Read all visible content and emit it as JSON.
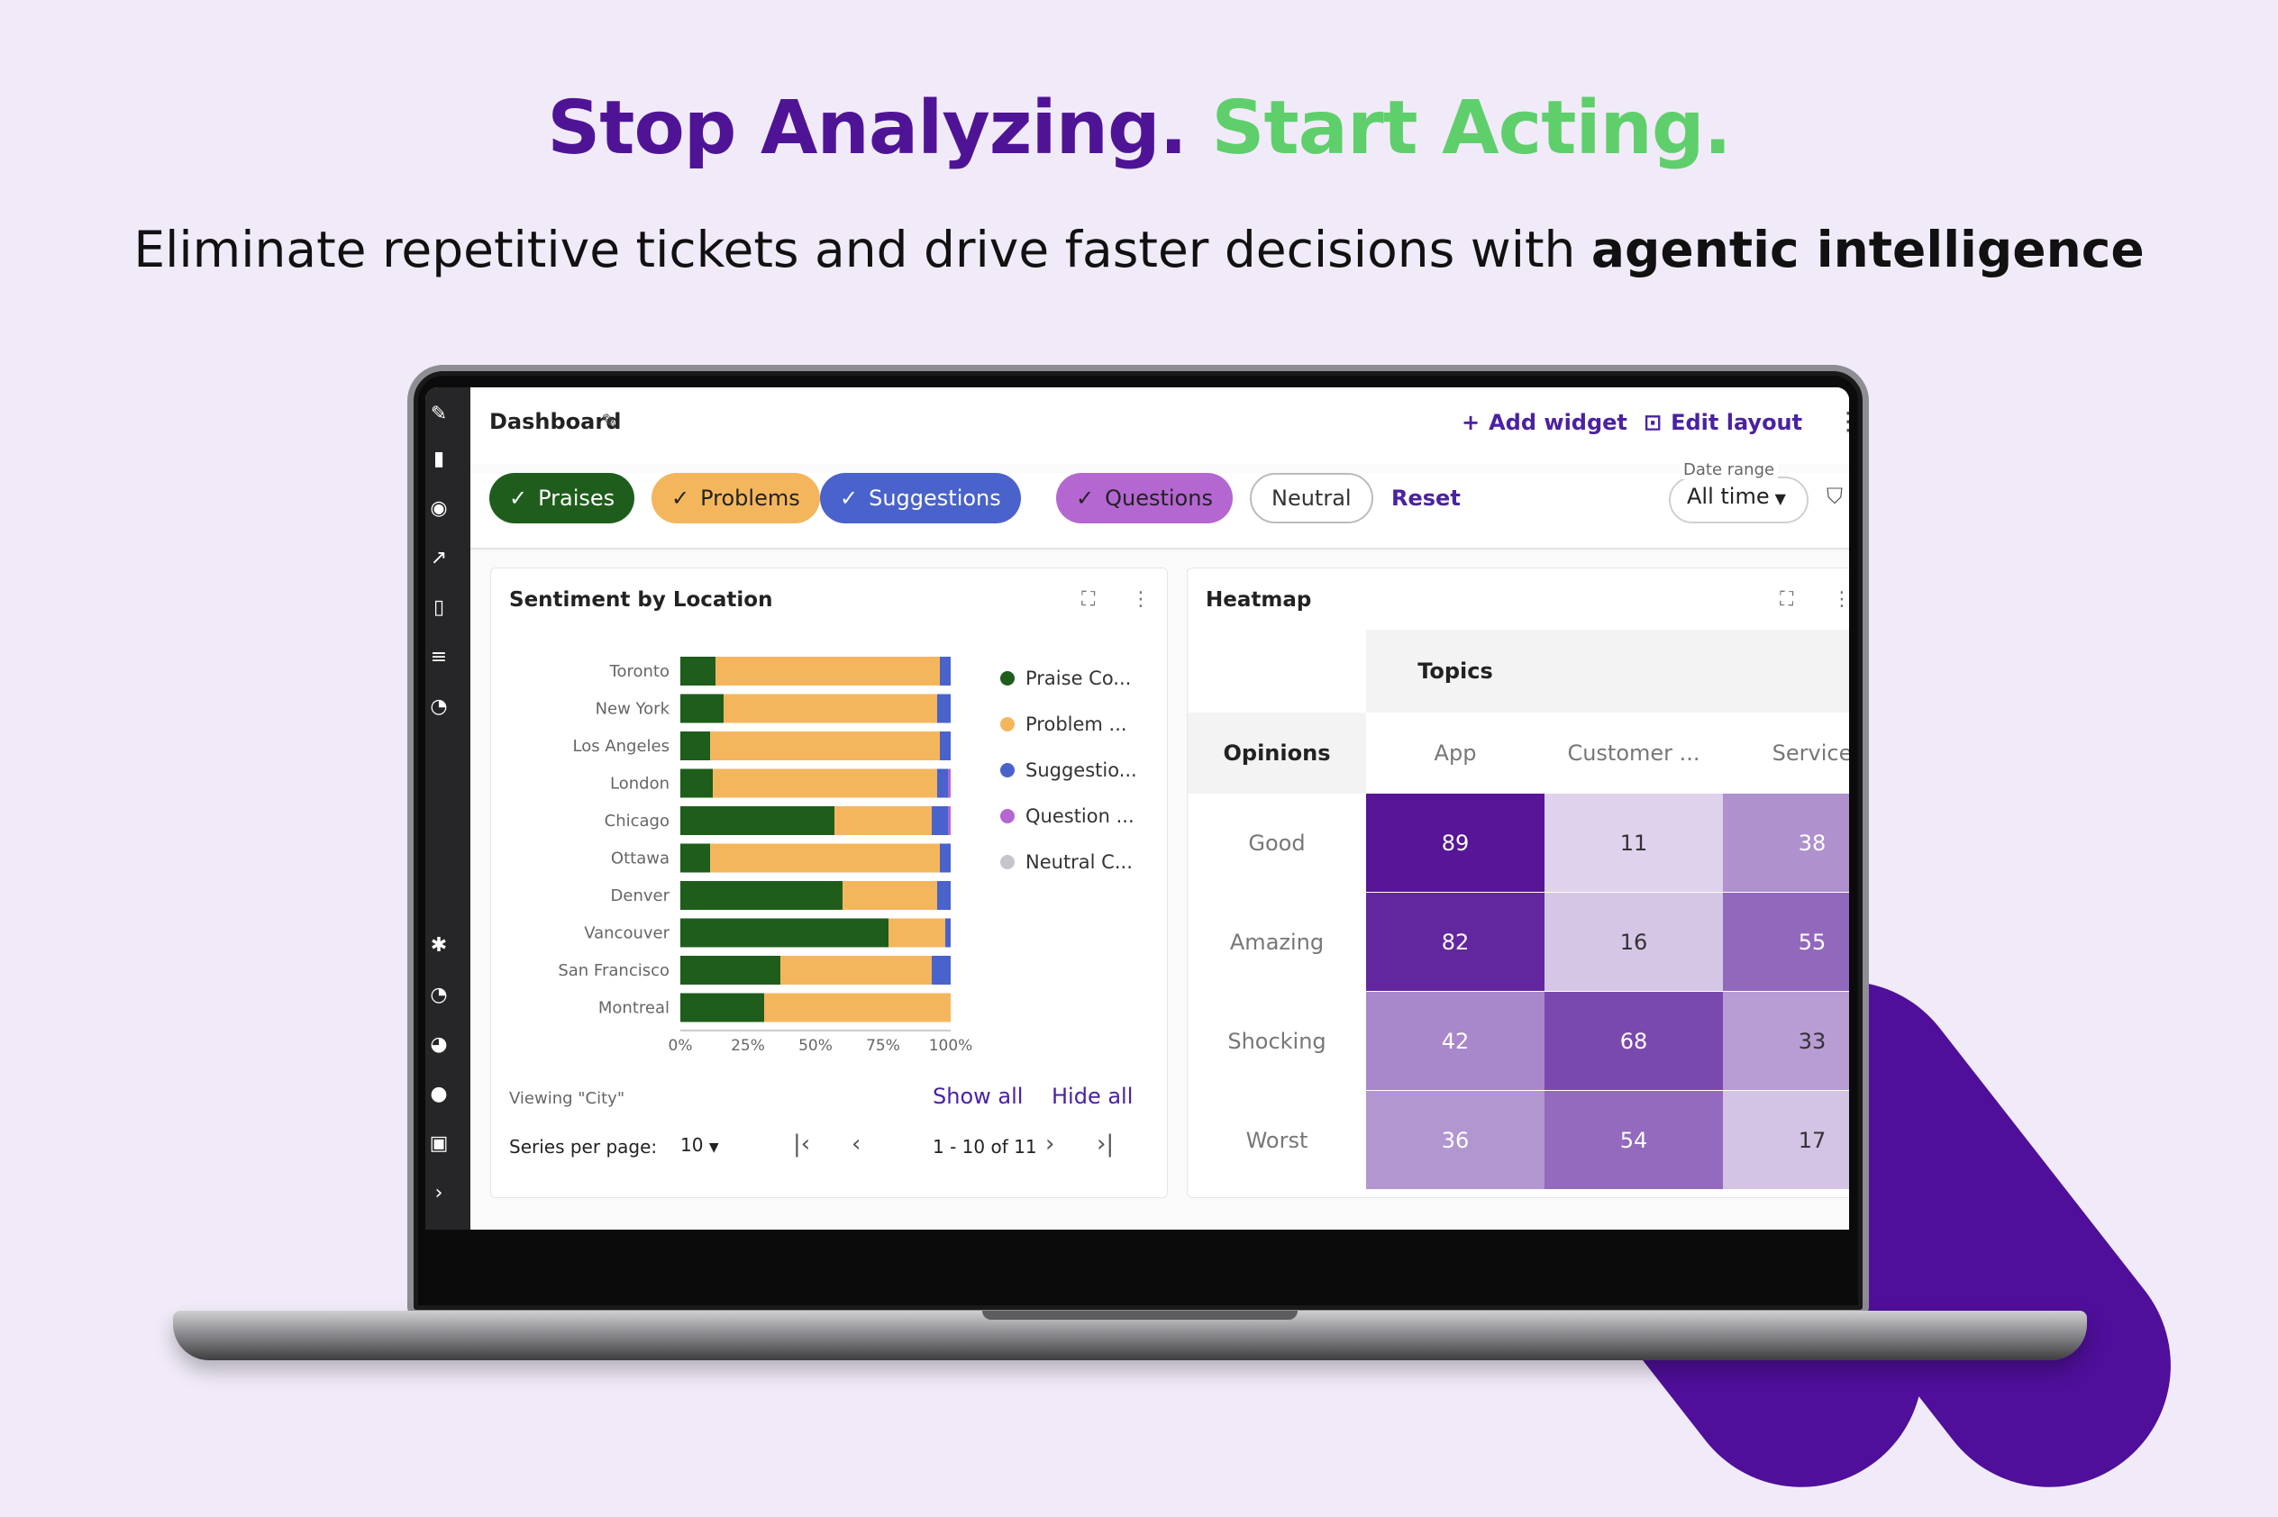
{
  "headline": {
    "part1": "Stop Analyzing.",
    "part2": "Start Acting."
  },
  "subline": {
    "text": "Eliminate repetitive tickets and drive faster decisions with ",
    "bold": "agentic intelligence"
  },
  "header": {
    "title": "Dashboard",
    "add_widget": "Add widget",
    "edit_layout": "Edit layout"
  },
  "filters": {
    "chips": [
      "Praises",
      "Problems",
      "Suggestions",
      "Questions",
      "Neutral"
    ],
    "reset": "Reset",
    "date_range_label": "Date range",
    "date_range_value": "All time"
  },
  "colors": {
    "praise": "#1f5d1c",
    "problem": "#f4b65d",
    "suggestion": "#4a62cb",
    "question": "#b466d1",
    "neutral": "#c5c5cc",
    "accent": "#4a22a1",
    "headline_purple": "#4f1496",
    "headline_green": "#5fcf6b"
  },
  "sentiment_card": {
    "title": "Sentiment by Location",
    "viewing": "Viewing \"City\"",
    "show_all": "Show all",
    "hide_all": "Hide all",
    "per_page_label": "Series per page:",
    "per_page_value": "10",
    "page_range": "1 - 10 of 11"
  },
  "chart_data": {
    "type": "bar",
    "orientation": "horizontal",
    "stacked": true,
    "normalized": true,
    "categories": [
      "Toronto",
      "New York",
      "Los Angeles",
      "London",
      "Chicago",
      "Ottawa",
      "Denver",
      "Vancouver",
      "San Francisco",
      "Montreal"
    ],
    "series": [
      {
        "name": "Praise Co...",
        "values": [
          13,
          16,
          11,
          12,
          57,
          11,
          60,
          77,
          37,
          31
        ]
      },
      {
        "name": "Problem ...",
        "values": [
          83,
          79,
          85,
          83,
          36,
          85,
          35,
          21,
          56,
          69
        ]
      },
      {
        "name": "Suggestio...",
        "values": [
          4,
          5,
          4,
          4,
          6,
          4,
          5,
          2,
          7,
          0
        ]
      },
      {
        "name": "Question ...",
        "values": [
          0,
          0,
          0,
          1,
          1,
          0,
          0,
          0,
          0,
          0
        ]
      },
      {
        "name": "Neutral C...",
        "values": [
          0,
          0,
          0,
          0,
          0,
          0,
          0,
          0,
          0,
          0
        ]
      }
    ],
    "x_ticks": [
      "0%",
      "25%",
      "50%",
      "75%",
      "100%"
    ],
    "xlim": [
      0,
      100
    ],
    "legend_position": "right"
  },
  "heatmap": {
    "title": "Heatmap",
    "col_group": "Topics",
    "row_group": "Opinions",
    "columns": [
      "App",
      "Customer ...",
      "Service"
    ],
    "rows": [
      {
        "label": "Good",
        "values": [
          "89",
          "11",
          "38"
        ]
      },
      {
        "label": "Amazing",
        "values": [
          "82",
          "16",
          "55"
        ]
      },
      {
        "label": "Shocking",
        "values": [
          "42",
          "68",
          "33"
        ]
      },
      {
        "label": "Worst",
        "values": [
          "36",
          "54",
          "17"
        ]
      }
    ]
  }
}
